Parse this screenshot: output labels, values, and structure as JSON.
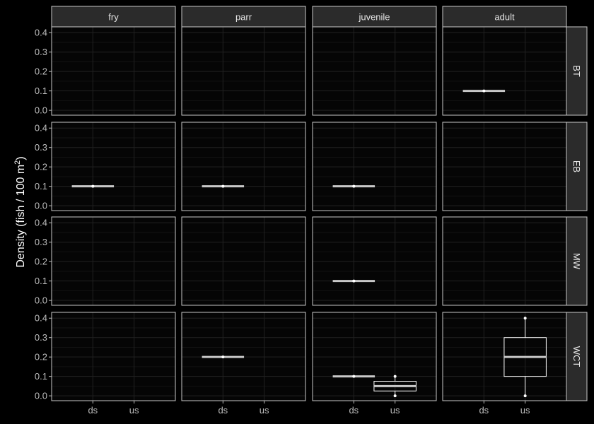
{
  "chart_data": {
    "type": "boxplot",
    "ylabel": "Density (fish / 100 m",
    "ylabel_sup": "2",
    "ylabel_close": ")",
    "xlabel": "",
    "columns": [
      "fry",
      "parr",
      "juvenile",
      "adult"
    ],
    "rows": [
      "BT",
      "EB",
      "MW",
      "WCT"
    ],
    "x_categories": [
      "ds",
      "us"
    ],
    "y_ticks": [
      "0.0",
      "0.1",
      "0.2",
      "0.3",
      "0.4"
    ],
    "ylim": [
      -0.025,
      0.43
    ],
    "grid": true,
    "boxes": [
      {
        "row": "BT",
        "col": "adult",
        "x": "ds",
        "min": 0.1,
        "q1": 0.1,
        "median": 0.1,
        "q3": 0.1,
        "max": 0.1,
        "points": [
          0.1
        ]
      },
      {
        "row": "EB",
        "col": "fry",
        "x": "ds",
        "min": 0.1,
        "q1": 0.1,
        "median": 0.1,
        "q3": 0.1,
        "max": 0.1,
        "points": [
          0.1
        ]
      },
      {
        "row": "EB",
        "col": "parr",
        "x": "ds",
        "min": 0.1,
        "q1": 0.1,
        "median": 0.1,
        "q3": 0.1,
        "max": 0.1,
        "points": [
          0.1
        ]
      },
      {
        "row": "EB",
        "col": "juvenile",
        "x": "ds",
        "min": 0.1,
        "q1": 0.1,
        "median": 0.1,
        "q3": 0.1,
        "max": 0.1,
        "points": [
          0.1
        ]
      },
      {
        "row": "MW",
        "col": "juvenile",
        "x": "ds",
        "min": 0.1,
        "q1": 0.1,
        "median": 0.1,
        "q3": 0.1,
        "max": 0.1,
        "points": [
          0.1
        ]
      },
      {
        "row": "WCT",
        "col": "parr",
        "x": "ds",
        "min": 0.2,
        "q1": 0.2,
        "median": 0.2,
        "q3": 0.2,
        "max": 0.2,
        "points": [
          0.2
        ]
      },
      {
        "row": "WCT",
        "col": "juvenile",
        "x": "ds",
        "min": 0.1,
        "q1": 0.1,
        "median": 0.1,
        "q3": 0.1,
        "max": 0.1,
        "points": [
          0.1
        ]
      },
      {
        "row": "WCT",
        "col": "juvenile",
        "x": "us",
        "min": 0.0,
        "q1": 0.025,
        "median": 0.05,
        "q3": 0.075,
        "max": 0.1,
        "points": [
          0.0,
          0.1
        ]
      },
      {
        "row": "WCT",
        "col": "adult",
        "x": "us",
        "min": 0.0,
        "q1": 0.1,
        "median": 0.2,
        "q3": 0.3,
        "max": 0.4,
        "points": [
          0.0,
          0.4
        ]
      }
    ],
    "colors": {
      "background": "#000000",
      "panel": "#050505",
      "panel_border": "#c8c8c8",
      "strip": "#2b2b2b",
      "grid_major": "#222222",
      "grid_minor": "#121212",
      "box_line": "#ffffff",
      "median_line": "#c8c8c8",
      "tick_text": "#bdbdbd"
    }
  }
}
